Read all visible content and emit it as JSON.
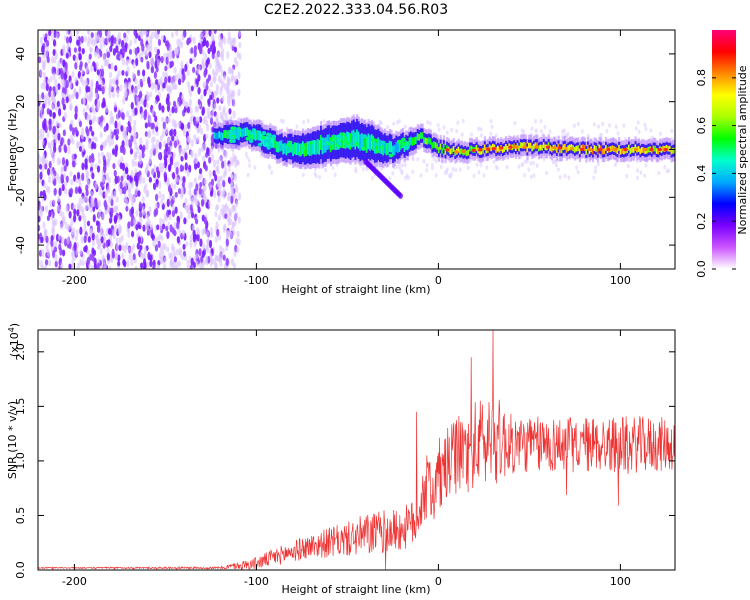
{
  "title": "C2E2.2022.333.04.56.R03",
  "colors": {
    "snr_line": "#ee3333",
    "axes": "#000000",
    "noise": "#b28cff"
  },
  "chart_data": [
    {
      "type": "heatmap",
      "xlabel": "Height of straight line (km)",
      "ylabel": "Frequency (Hz)",
      "xlim": [
        -220,
        130
      ],
      "ylim": [
        -50,
        50
      ],
      "xticks": [
        "-200",
        "-100",
        "0",
        "100"
      ],
      "yticks": [
        "-40",
        "-20",
        "0",
        "20",
        "40"
      ],
      "colorbar": {
        "label": "Normalized spectral amplitude",
        "range": [
          0,
          1
        ],
        "ticks": [
          "0.0",
          "0.2",
          "0.4",
          "0.6",
          "0.8"
        ],
        "colormap": [
          "#ffffff",
          "#cc55ff",
          "#7a00ff",
          "#0000ff",
          "#00aaff",
          "#00ffcc",
          "#00ff00",
          "#aaff00",
          "#ffff00",
          "#ff8800",
          "#ff0000",
          "#ff0077"
        ]
      },
      "noise_region_x": [
        -220,
        -115
      ],
      "ridge": [
        {
          "x": -123,
          "y": 5,
          "w": 3,
          "amp": 0.45
        },
        {
          "x": -115,
          "y": 6,
          "w": 4,
          "amp": 0.55
        },
        {
          "x": -105,
          "y": 7,
          "w": 4,
          "amp": 0.5
        },
        {
          "x": -95,
          "y": 4,
          "w": 5,
          "amp": 0.55
        },
        {
          "x": -85,
          "y": 1,
          "w": 5,
          "amp": 0.5
        },
        {
          "x": -75,
          "y": 0,
          "w": 6,
          "amp": 0.55
        },
        {
          "x": -65,
          "y": 2,
          "w": 7,
          "amp": 0.5
        },
        {
          "x": -55,
          "y": 3,
          "w": 7,
          "amp": 0.55
        },
        {
          "x": -45,
          "y": 4,
          "w": 8,
          "amp": 0.5
        },
        {
          "x": -35,
          "y": 2,
          "w": 7,
          "amp": 0.55
        },
        {
          "x": -25,
          "y": 0,
          "w": 5,
          "amp": 0.45
        },
        {
          "x": -15,
          "y": 3,
          "w": 4,
          "amp": 0.55
        },
        {
          "x": -10,
          "y": 6,
          "w": 3,
          "amp": 0.6
        },
        {
          "x": -2,
          "y": 1,
          "w": 3,
          "amp": 0.65
        },
        {
          "x": 10,
          "y": -1,
          "w": 2.5,
          "amp": 0.7
        },
        {
          "x": 25,
          "y": 0,
          "w": 2.5,
          "amp": 0.75
        },
        {
          "x": 40,
          "y": 1,
          "w": 2.5,
          "amp": 0.8
        },
        {
          "x": 60,
          "y": 1,
          "w": 2.5,
          "amp": 0.78
        },
        {
          "x": 80,
          "y": 0,
          "w": 2.5,
          "amp": 0.82
        },
        {
          "x": 100,
          "y": 0,
          "w": 2.5,
          "amp": 0.8
        },
        {
          "x": 120,
          "y": 0,
          "w": 2.5,
          "amp": 0.78
        },
        {
          "x": 130,
          "y": 0,
          "w": 2.5,
          "amp": 0.75
        }
      ],
      "tail": {
        "x": [
          -40,
          -20
        ],
        "y": [
          -5,
          -20
        ]
      }
    },
    {
      "type": "line",
      "xlabel": "Height of straight line (km)",
      "ylabel": "SNR (10 * v/v)",
      "yscale_label": "(x10",
      "yscale_exp": "4",
      "yscale_close": ")",
      "xlim": [
        -220,
        130
      ],
      "ylim": [
        0,
        2.2
      ],
      "xticks": [
        "-200",
        "-100",
        "0",
        "100"
      ],
      "yticks": [
        "0.0",
        "0.5",
        "1.0",
        "1.5",
        "2.0"
      ],
      "series": [
        {
          "envelope": {
            "x": [
              -220,
              -120,
              -100,
              -90,
              -80,
              -70,
              -60,
              -50,
              -40,
              -30,
              -20,
              -12,
              -8,
              0,
              10,
              20,
              30,
              40,
              50,
              60,
              70,
              80,
              90,
              100,
              110,
              120,
              130
            ],
            "mean": [
              0.02,
              0.02,
              0.06,
              0.12,
              0.17,
              0.22,
              0.25,
              0.28,
              0.32,
              0.35,
              0.37,
              0.45,
              0.72,
              0.85,
              1.05,
              1.15,
              1.2,
              1.15,
              1.15,
              1.15,
              1.15,
              1.15,
              1.15,
              1.15,
              1.15,
              1.15,
              1.15
            ],
            "spread": [
              0.005,
              0.01,
              0.06,
              0.08,
              0.1,
              0.11,
              0.14,
              0.16,
              0.2,
              0.2,
              0.2,
              0.22,
              0.3,
              0.35,
              0.35,
              0.4,
              0.45,
              0.28,
              0.26,
              0.26,
              0.26,
              0.26,
              0.26,
              0.26,
              0.26,
              0.26,
              0.24
            ]
          },
          "peaks": [
            {
              "x": 30,
              "y": 2.2
            },
            {
              "x": 18,
              "y": 1.95
            },
            {
              "x": -12,
              "y": 1.45
            }
          ]
        }
      ]
    }
  ]
}
